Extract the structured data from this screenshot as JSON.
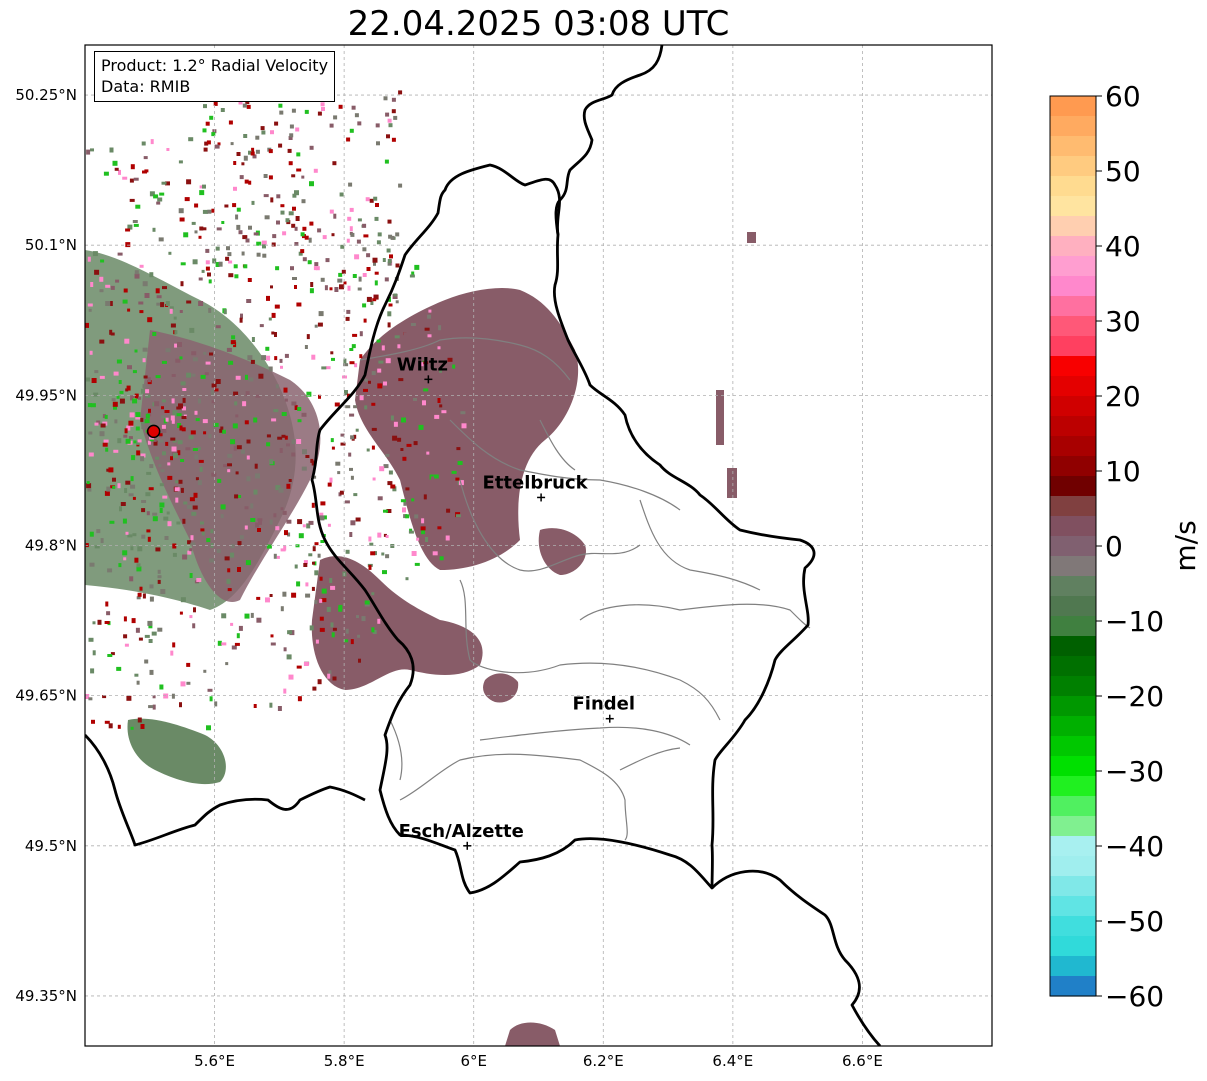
{
  "title": "22.04.2025 03:08 UTC",
  "info": {
    "product": "Product: 1.2° Radial Velocity",
    "data": "Data: RMIB"
  },
  "map": {
    "lon_range": [
      5.4,
      6.8
    ],
    "lat_range": [
      49.3,
      50.3
    ],
    "lon_ticks": [
      "5.6°E",
      "5.8°E",
      "6°E",
      "6.2°E",
      "6.4°E",
      "6.6°E"
    ],
    "lat_ticks": [
      "50.25°N",
      "50.1°N",
      "49.95°N",
      "49.8°N",
      "49.65°N",
      "49.5°N",
      "49.35°N"
    ],
    "grid": true,
    "radar_site": {
      "lon": 5.506,
      "lat": 49.914,
      "color": "#e00000"
    },
    "cities": [
      {
        "name": "Wiltz",
        "lon": 5.93,
        "lat": 49.966
      },
      {
        "name": "Ettelbruck",
        "lon": 6.104,
        "lat": 49.848
      },
      {
        "name": "Findel",
        "lon": 6.21,
        "lat": 49.627
      },
      {
        "name": "Esch/Alzette",
        "lon": 5.99,
        "lat": 49.5
      }
    ]
  },
  "colorbar": {
    "label": "m/s",
    "min": -60,
    "max": 60,
    "ticks": [
      "60",
      "50",
      "40",
      "30",
      "20",
      "10",
      "0",
      "−10",
      "−20",
      "−30",
      "−40",
      "−50",
      "−60"
    ],
    "colors": [
      "#ff9a50",
      "#ffaa60",
      "#ffbb70",
      "#ffcb80",
      "#ffdb90",
      "#ffe4a0",
      "#ffcfb0",
      "#ffb0c0",
      "#ff9ed0",
      "#ff88cc",
      "#ff70a0",
      "#ff5878",
      "#ff4060",
      "#f80000",
      "#e40000",
      "#d00000",
      "#bc0000",
      "#a80000",
      "#900000",
      "#700000",
      "#804040",
      "#805060",
      "#806070",
      "#807878",
      "#608060",
      "#507850",
      "#408040",
      "#006000",
      "#007000",
      "#008000",
      "#009800",
      "#00b000",
      "#00c800",
      "#00e000",
      "#20f020",
      "#50f060",
      "#80f090",
      "#a8f0f0",
      "#a0eeee",
      "#80e8e8",
      "#60e4e4",
      "#40dede",
      "#30dada",
      "#20b8d0",
      "#2080c8"
    ]
  }
}
